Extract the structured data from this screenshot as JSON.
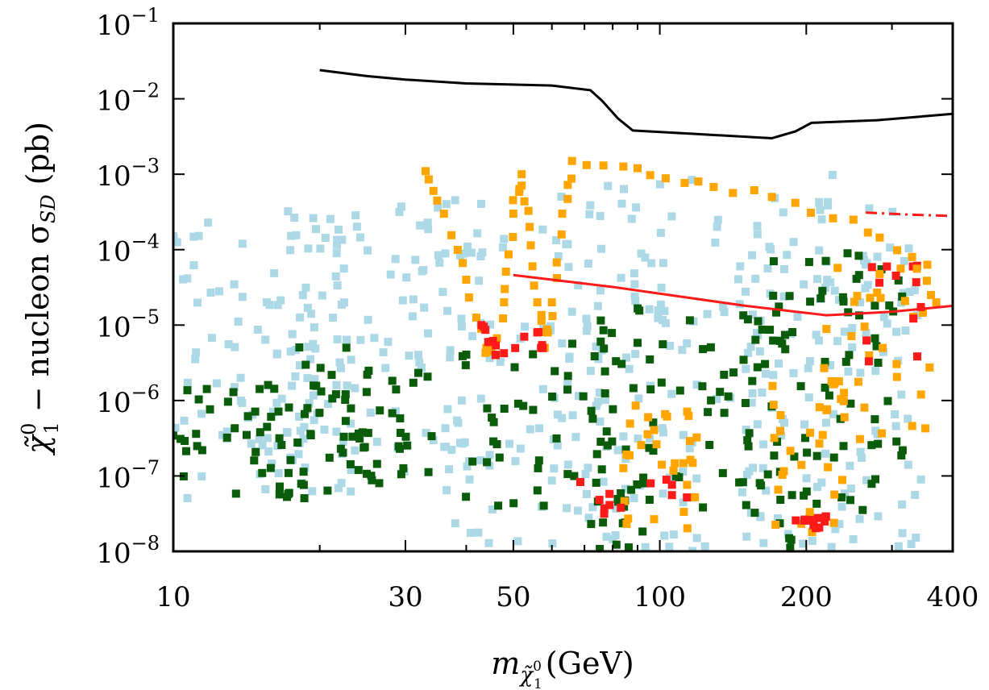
{
  "chart_data": {
    "type": "scatter",
    "xscale": "log",
    "yscale": "log",
    "xlim": [
      10,
      400
    ],
    "ylim": [
      1e-08,
      0.1
    ],
    "x_ticks": [
      {
        "value": 10,
        "label": "10"
      },
      {
        "value": 30,
        "label": "30"
      },
      {
        "value": 50,
        "label": "50"
      },
      {
        "value": 100,
        "label": "100"
      },
      {
        "value": 200,
        "label": "200"
      },
      {
        "value": 400,
        "label": "400"
      }
    ],
    "y_ticks": [
      {
        "value": 1e-08,
        "base": "10",
        "exp": "−8"
      },
      {
        "value": 1e-07,
        "base": "10",
        "exp": "−7"
      },
      {
        "value": 1e-06,
        "base": "10",
        "exp": "−6"
      },
      {
        "value": 1e-05,
        "base": "10",
        "exp": "−5"
      },
      {
        "value": 0.0001,
        "base": "10",
        "exp": "−4"
      },
      {
        "value": 0.001,
        "base": "10",
        "exp": "−3"
      },
      {
        "value": 0.01,
        "base": "10",
        "exp": "−2"
      },
      {
        "value": 0.1,
        "base": "10",
        "exp": "−1"
      }
    ],
    "xlabel": {
      "m": "m",
      "sub_base": "χ̃",
      "sub_sup": "0",
      "sub_sub": "1",
      "unit": "(GeV)"
    },
    "ylabel": {
      "chi": "χ̃",
      "sup": "0",
      "sub": "1",
      "middle": " − nucleon σ",
      "sub2": "SD",
      "unit": " (pb)"
    },
    "scatter_series": [
      {
        "name": "light blue",
        "color": "#add8e6",
        "regions": [
          {
            "x": [
              10,
              24
            ],
            "y": [
              5e-08,
              0.0003
            ]
          },
          {
            "x": [
              15,
              45
            ],
            "y": [
              1e-07,
              0.0005
            ]
          },
          {
            "x": [
              35,
              120
            ],
            "y": [
              1e-08,
              0.0005
            ]
          },
          {
            "x": [
              60,
              250
            ],
            "y": [
              1e-08,
              0.001
            ]
          },
          {
            "x": [
              150,
              350
            ],
            "y": [
              1e-08,
              0.0005
            ]
          }
        ]
      },
      {
        "name": "dark green",
        "color": "#0a5c0a",
        "regions": [
          {
            "x": [
              10,
              30
            ],
            "y": [
              5e-08,
              2e-06
            ]
          },
          {
            "x": [
              18,
              90
            ],
            "y": [
              4e-08,
              6e-06
            ]
          },
          {
            "x": [
              70,
              180
            ],
            "y": [
              1e-08,
              2e-05
            ]
          },
          {
            "x": [
              150,
              320
            ],
            "y": [
              1e-08,
              0.0001
            ]
          }
        ]
      },
      {
        "name": "orange",
        "color": "#ffa500",
        "regions": [
          {
            "x": [
              82,
              120
            ],
            "y": [
              2e-08,
              1e-06
            ]
          },
          {
            "x": [
              170,
              240
            ],
            "y": [
              1e-08,
              3e-06
            ]
          },
          {
            "x": [
              220,
              380
            ],
            "y": [
              3e-07,
              8e-05
            ]
          }
        ]
      },
      {
        "name": "red",
        "color": "#ff1a1a",
        "regions": [
          {
            "x": [
              55,
              120
            ],
            "y": [
              3e-08,
              1e-07
            ]
          },
          {
            "x": [
              190,
              220
            ],
            "y": [
              2e-08,
              3e-08
            ]
          },
          {
            "x": [
              250,
              380
            ],
            "y": [
              3e-06,
              8e-05
            ]
          }
        ]
      }
    ],
    "band_series": [
      {
        "name": "orange resonance band",
        "color": "#ffa500",
        "points": [
          [
            33,
            0.0011
          ],
          [
            36,
            0.0003
          ],
          [
            40,
            4e-05
          ],
          [
            44,
            5e-06
          ],
          [
            46,
            4e-06
          ],
          [
            48,
            3e-05
          ],
          [
            50,
            0.0003
          ],
          [
            52,
            0.001
          ],
          [
            54,
            0.0002
          ],
          [
            56,
            2e-05
          ],
          [
            58,
            5e-06
          ],
          [
            60,
            2e-05
          ],
          [
            63,
            0.0003
          ],
          [
            66,
            0.0015
          ],
          [
            90,
            0.0012
          ],
          [
            120,
            0.0008
          ],
          [
            170,
            0.0005
          ],
          [
            250,
            0.00025
          ],
          [
            330,
            8e-05
          ],
          [
            370,
            2e-05
          ]
        ]
      },
      {
        "name": "red resonance points",
        "color": "#ff1a1a",
        "points": [
          [
            43,
            1e-05
          ],
          [
            45,
            6e-06
          ],
          [
            46,
            4e-06
          ],
          [
            56,
            8e-06
          ],
          [
            57,
            5e-06
          ]
        ]
      }
    ],
    "lines": [
      {
        "name": "black limit",
        "color": "#000000",
        "style": "solid",
        "points": [
          [
            20,
            0.024
          ],
          [
            25,
            0.02
          ],
          [
            30,
            0.018
          ],
          [
            40,
            0.016
          ],
          [
            60,
            0.015
          ],
          [
            72,
            0.013
          ],
          [
            76,
            0.0095
          ],
          [
            82,
            0.0055
          ],
          [
            88,
            0.0038
          ],
          [
            120,
            0.0034
          ],
          [
            170,
            0.003
          ],
          [
            190,
            0.0037
          ],
          [
            205,
            0.0048
          ],
          [
            280,
            0.0052
          ],
          [
            400,
            0.0063
          ]
        ]
      },
      {
        "name": "red solid limit",
        "color": "#ff1a1a",
        "style": "solid",
        "points": [
          [
            50,
            4.6e-05
          ],
          [
            80,
            3.2e-05
          ],
          [
            150,
            1.8e-05
          ],
          [
            220,
            1.35e-05
          ],
          [
            300,
            1.5e-05
          ],
          [
            400,
            1.8e-05
          ]
        ]
      },
      {
        "name": "red dash-dot limit",
        "color": "#ff1a1a",
        "style": "dashdot",
        "points": [
          [
            265,
            0.00031
          ],
          [
            330,
            0.00029
          ],
          [
            400,
            0.00028
          ]
        ]
      }
    ]
  }
}
